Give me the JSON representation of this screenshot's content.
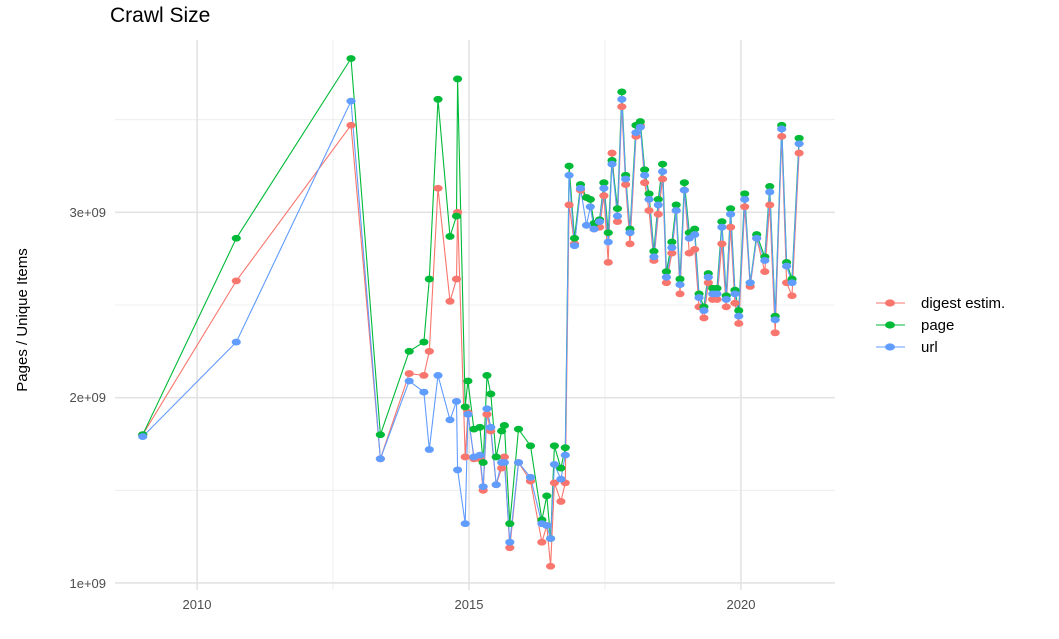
{
  "chart_data": {
    "type": "line",
    "title": "Crawl Size",
    "xlabel": "",
    "ylabel": "Pages / Unique Items",
    "xlim": [
      2008.49,
      2021.73
    ],
    "ylim": [
      962000000,
      3930000000
    ],
    "x_ticks": [
      2010,
      2015,
      2020
    ],
    "x_tick_labels": [
      "2010",
      "2015",
      "2020"
    ],
    "y_ticks": [
      1000000000,
      2000000000,
      3000000000
    ],
    "y_tick_labels": [
      "1e+09",
      "2e+09",
      "3e+09"
    ],
    "grid": true,
    "legend_position": "right",
    "markers": true,
    "x": [
      2009.0,
      2010.72,
      2012.83,
      2013.37,
      2013.9,
      2014.17,
      2014.27,
      2014.43,
      2014.65,
      2014.77,
      2014.79,
      2014.93,
      2014.98,
      2015.09,
      2015.2,
      2015.26,
      2015.33,
      2015.4,
      2015.5,
      2015.6,
      2015.65,
      2015.75,
      2015.91,
      2016.13,
      2016.34,
      2016.43,
      2016.5,
      2016.57,
      2016.69,
      2016.77,
      2016.84,
      2016.94,
      2017.05,
      2017.16,
      2017.23,
      2017.3,
      2017.4,
      2017.48,
      2017.56,
      2017.63,
      2017.73,
      2017.81,
      2017.88,
      2017.96,
      2018.07,
      2018.15,
      2018.23,
      2018.31,
      2018.4,
      2018.48,
      2018.56,
      2018.63,
      2018.73,
      2018.81,
      2018.88,
      2018.96,
      2019.05,
      2019.15,
      2019.23,
      2019.32,
      2019.4,
      2019.48,
      2019.56,
      2019.65,
      2019.73,
      2019.81,
      2019.89,
      2019.96,
      2020.07,
      2020.17,
      2020.29,
      2020.44,
      2020.53,
      2020.63,
      2020.75,
      2020.84,
      2020.94,
      2021.07
    ],
    "series": [
      {
        "name": "digest estim.",
        "color": "#F8766D",
        "values": [
          1800000000.0,
          2630000000.0,
          3470000000.0,
          1670000000.0,
          2130000000.0,
          2120000000.0,
          2250000000.0,
          3130000000.0,
          2520000000.0,
          2640000000.0,
          3000000000.0,
          1680000000.0,
          1920000000.0,
          1670000000.0,
          1670000000.0,
          1500000000.0,
          1910000000.0,
          1820000000.0,
          1530000000.0,
          1620000000.0,
          1680000000.0,
          1190000000.0,
          1650000000.0,
          1550000000.0,
          1220000000.0,
          1310000000.0,
          1090000000.0,
          1540000000.0,
          1440000000.0,
          1540000000.0,
          3040000000.0,
          2830000000.0,
          3120000000.0,
          3080000000.0,
          3070000000.0,
          2910000000.0,
          2920000000.0,
          3090000000.0,
          2730000000.0,
          3320000000.0,
          2950000000.0,
          3570000000.0,
          3150000000.0,
          2830000000.0,
          3410000000.0,
          3470000000.0,
          3160000000.0,
          3010000000.0,
          2740000000.0,
          2990000000.0,
          3180000000.0,
          2620000000.0,
          2780000000.0,
          3010000000.0,
          2560000000.0,
          3120000000.0,
          2780000000.0,
          2800000000.0,
          2490000000.0,
          2430000000.0,
          2620000000.0,
          2530000000.0,
          2530000000.0,
          2830000000.0,
          2490000000.0,
          2920000000.0,
          2510000000.0,
          2400000000.0,
          3030000000.0,
          2600000000.0,
          2860000000.0,
          2680000000.0,
          3040000000.0,
          2350000000.0,
          3410000000.0,
          2620000000.0,
          2550000000.0,
          3320000000.0
        ]
      },
      {
        "name": "page",
        "color": "#00BA38",
        "values": [
          1800000000.0,
          2860000000.0,
          3830000000.0,
          1800000000.0,
          2250000000.0,
          2300000000.0,
          2640000000.0,
          3610000000.0,
          2870000000.0,
          2980000000.0,
          3720000000.0,
          1950000000.0,
          2090000000.0,
          1830000000.0,
          1840000000.0,
          1650000000.0,
          2120000000.0,
          2020000000.0,
          1680000000.0,
          1820000000.0,
          1850000000.0,
          1320000000.0,
          1830000000.0,
          1740000000.0,
          1340000000.0,
          1470000000.0,
          1240000000.0,
          1740000000.0,
          1620000000.0,
          1730000000.0,
          3250000000.0,
          2860000000.0,
          3150000000.0,
          3080000000.0,
          3070000000.0,
          2940000000.0,
          2960000000.0,
          3160000000.0,
          2890000000.0,
          3280000000.0,
          3020000000.0,
          3650000000.0,
          3200000000.0,
          2910000000.0,
          3470000000.0,
          3490000000.0,
          3230000000.0,
          3100000000.0,
          2790000000.0,
          3070000000.0,
          3260000000.0,
          2680000000.0,
          2840000000.0,
          3040000000.0,
          2640000000.0,
          3160000000.0,
          2890000000.0,
          2910000000.0,
          2560000000.0,
          2490000000.0,
          2670000000.0,
          2590000000.0,
          2590000000.0,
          2950000000.0,
          2550000000.0,
          3020000000.0,
          2580000000.0,
          2470000000.0,
          3100000000.0,
          2620000000.0,
          2880000000.0,
          2760000000.0,
          3140000000.0,
          2440000000.0,
          3470000000.0,
          2730000000.0,
          2640000000.0,
          3400000000.0
        ]
      },
      {
        "name": "url",
        "color": "#619CFF",
        "values": [
          1790000000.0,
          2300000000.0,
          3600000000.0,
          1670000000.0,
          2090000000.0,
          2030000000.0,
          1720000000.0,
          2120000000.0,
          1880000000.0,
          1980000000.0,
          1610000000.0,
          1320000000.0,
          1910000000.0,
          1680000000.0,
          1690000000.0,
          1520000000.0,
          1940000000.0,
          1840000000.0,
          1530000000.0,
          1650000000.0,
          1650000000.0,
          1220000000.0,
          1650000000.0,
          1570000000.0,
          1320000000.0,
          1310000000.0,
          1240000000.0,
          1640000000.0,
          1560000000.0,
          1690000000.0,
          3200000000.0,
          2820000000.0,
          3130000000.0,
          2930000000.0,
          3030000000.0,
          2910000000.0,
          2950000000.0,
          3130000000.0,
          2840000000.0,
          3260000000.0,
          2980000000.0,
          3610000000.0,
          3180000000.0,
          2890000000.0,
          3430000000.0,
          3460000000.0,
          3200000000.0,
          3070000000.0,
          2760000000.0,
          3040000000.0,
          3220000000.0,
          2650000000.0,
          2810000000.0,
          3010000000.0,
          2610000000.0,
          3120000000.0,
          2860000000.0,
          2880000000.0,
          2540000000.0,
          2470000000.0,
          2650000000.0,
          2560000000.0,
          2560000000.0,
          2920000000.0,
          2530000000.0,
          2990000000.0,
          2560000000.0,
          2440000000.0,
          3070000000.0,
          2620000000.0,
          2860000000.0,
          2740000000.0,
          3110000000.0,
          2420000000.0,
          3450000000.0,
          2710000000.0,
          2620000000.0,
          3370000000.0
        ]
      }
    ]
  }
}
